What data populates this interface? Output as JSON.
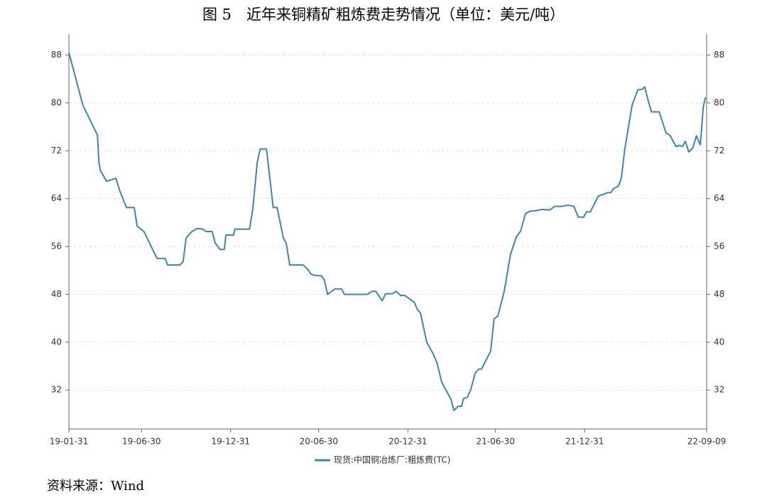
{
  "chart_data": {
    "type": "line",
    "title": "图 5　近年来铜精矿粗炼费走势情况（单位：美元/吨）",
    "source": "资料来源：Wind",
    "x": [
      "19-01-31",
      "19-03-01",
      "19-03-31",
      "19-04-03",
      "19-04-06",
      "19-04-19",
      "19-05-08",
      "19-05-17",
      "19-05-30",
      "19-06-15",
      "19-06-21",
      "19-07-05",
      "19-08-01",
      "19-08-18",
      "19-08-23",
      "19-09-17",
      "19-09-24",
      "19-09-30",
      "19-10-12",
      "19-10-22",
      "19-11-04",
      "19-11-10",
      "19-11-23",
      "19-11-29",
      "19-12-09",
      "19-12-18",
      "19-12-21",
      "20-01-06",
      "20-01-09",
      "20-02-08",
      "20-02-15",
      "20-02-24",
      "20-03-01",
      "20-03-14",
      "20-03-28",
      "20-04-05",
      "20-04-18",
      "20-04-24",
      "20-05-01",
      "20-05-29",
      "20-06-07",
      "20-06-14",
      "20-06-20",
      "20-07-06",
      "20-07-12",
      "20-07-18",
      "20-08-02",
      "20-08-16",
      "20-08-22",
      "20-10-08",
      "20-10-18",
      "20-10-26",
      "20-11-08",
      "20-11-15",
      "20-11-28",
      "20-12-07",
      "20-12-16",
      "20-12-25",
      "21-01-13",
      "21-01-20",
      "21-01-26",
      "21-02-08",
      "21-02-21",
      "21-03-01",
      "21-03-11",
      "21-03-23",
      "21-03-30",
      "21-04-05",
      "21-04-14",
      "21-04-21",
      "21-04-25",
      "21-05-03",
      "21-05-10",
      "21-05-19",
      "21-05-26",
      "21-06-01",
      "21-06-20",
      "21-06-27",
      "21-07-05",
      "21-07-18",
      "21-07-31",
      "21-08-12",
      "21-08-21",
      "21-08-31",
      "21-09-09",
      "21-09-23",
      "21-10-04",
      "21-10-20",
      "21-10-30",
      "21-11-12",
      "21-11-27",
      "21-12-09",
      "21-12-18",
      "21-12-29",
      "22-01-04",
      "22-01-12",
      "22-01-28",
      "22-02-17",
      "22-02-23",
      "22-03-01",
      "22-03-11",
      "22-03-17",
      "22-03-24",
      "22-04-08",
      "22-04-20",
      "22-04-30",
      "22-05-04",
      "22-05-12",
      "22-05-18",
      "22-06-03",
      "22-06-17",
      "22-06-25",
      "22-07-08",
      "22-07-15",
      "22-07-21",
      "22-07-27",
      "22-08-03",
      "22-08-11",
      "22-08-19",
      "22-08-27",
      "22-09-02",
      "22-09-06",
      "22-09-09"
    ],
    "series": [
      {
        "name": "现货:中国铜冶炼厂:粗炼费(TC)",
        "color": "#3a86b0",
        "values": [
          88.4,
          79.6,
          74.6,
          70.1,
          68.7,
          66.9,
          67.4,
          65.1,
          62.5,
          62.5,
          59.4,
          58.5,
          54.0,
          54.0,
          52.9,
          52.9,
          53.5,
          57.4,
          58.5,
          59.0,
          58.9,
          58.5,
          58.5,
          56.6,
          55.5,
          55.5,
          57.9,
          57.9,
          58.9,
          58.9,
          62.4,
          70.1,
          72.3,
          72.3,
          62.5,
          62.5,
          57.4,
          56.5,
          52.9,
          52.9,
          52.2,
          51.4,
          51.2,
          51.1,
          50.3,
          48.0,
          48.9,
          48.9,
          48.0,
          48.0,
          48.5,
          48.5,
          46.9,
          48.1,
          48.1,
          48.5,
          47.8,
          47.8,
          46.7,
          45.4,
          44.9,
          40.0,
          38.1,
          36.6,
          33.3,
          31.5,
          30.5,
          28.6,
          29.3,
          29.3,
          30.6,
          30.8,
          32.1,
          34.8,
          35.5,
          35.5,
          38.5,
          43.9,
          44.4,
          48.5,
          54.7,
          57.6,
          58.6,
          61.5,
          61.9,
          62.0,
          62.2,
          62.1,
          62.7,
          62.7,
          62.9,
          62.7,
          60.9,
          60.9,
          61.8,
          61.8,
          64.4,
          65.0,
          65.0,
          65.7,
          66.1,
          67.5,
          72.3,
          79.6,
          82.2,
          82.3,
          82.7,
          80.2,
          78.5,
          78.5,
          75.0,
          74.6,
          72.7,
          72.9,
          72.7,
          73.6,
          71.8,
          72.4,
          74.5,
          73.0,
          79.3,
          80.8,
          80.8
        ]
      }
    ],
    "xlim": [
      "19-01-31",
      "22-09-09"
    ],
    "xticks": [
      "19-01-31",
      "19-06-30",
      "19-12-31",
      "20-06-30",
      "20-12-31",
      "21-06-30",
      "21-12-31",
      "22-09-09"
    ],
    "ylim": [
      25.5,
      91.5
    ],
    "yticks": [
      32,
      40,
      48,
      56,
      64,
      72,
      80,
      88
    ],
    "y2lim": [
      25.5,
      91.5
    ],
    "y2ticks": [
      32,
      40,
      48,
      56,
      64,
      72,
      80,
      88
    ],
    "grid": true,
    "legend": "bottom"
  }
}
